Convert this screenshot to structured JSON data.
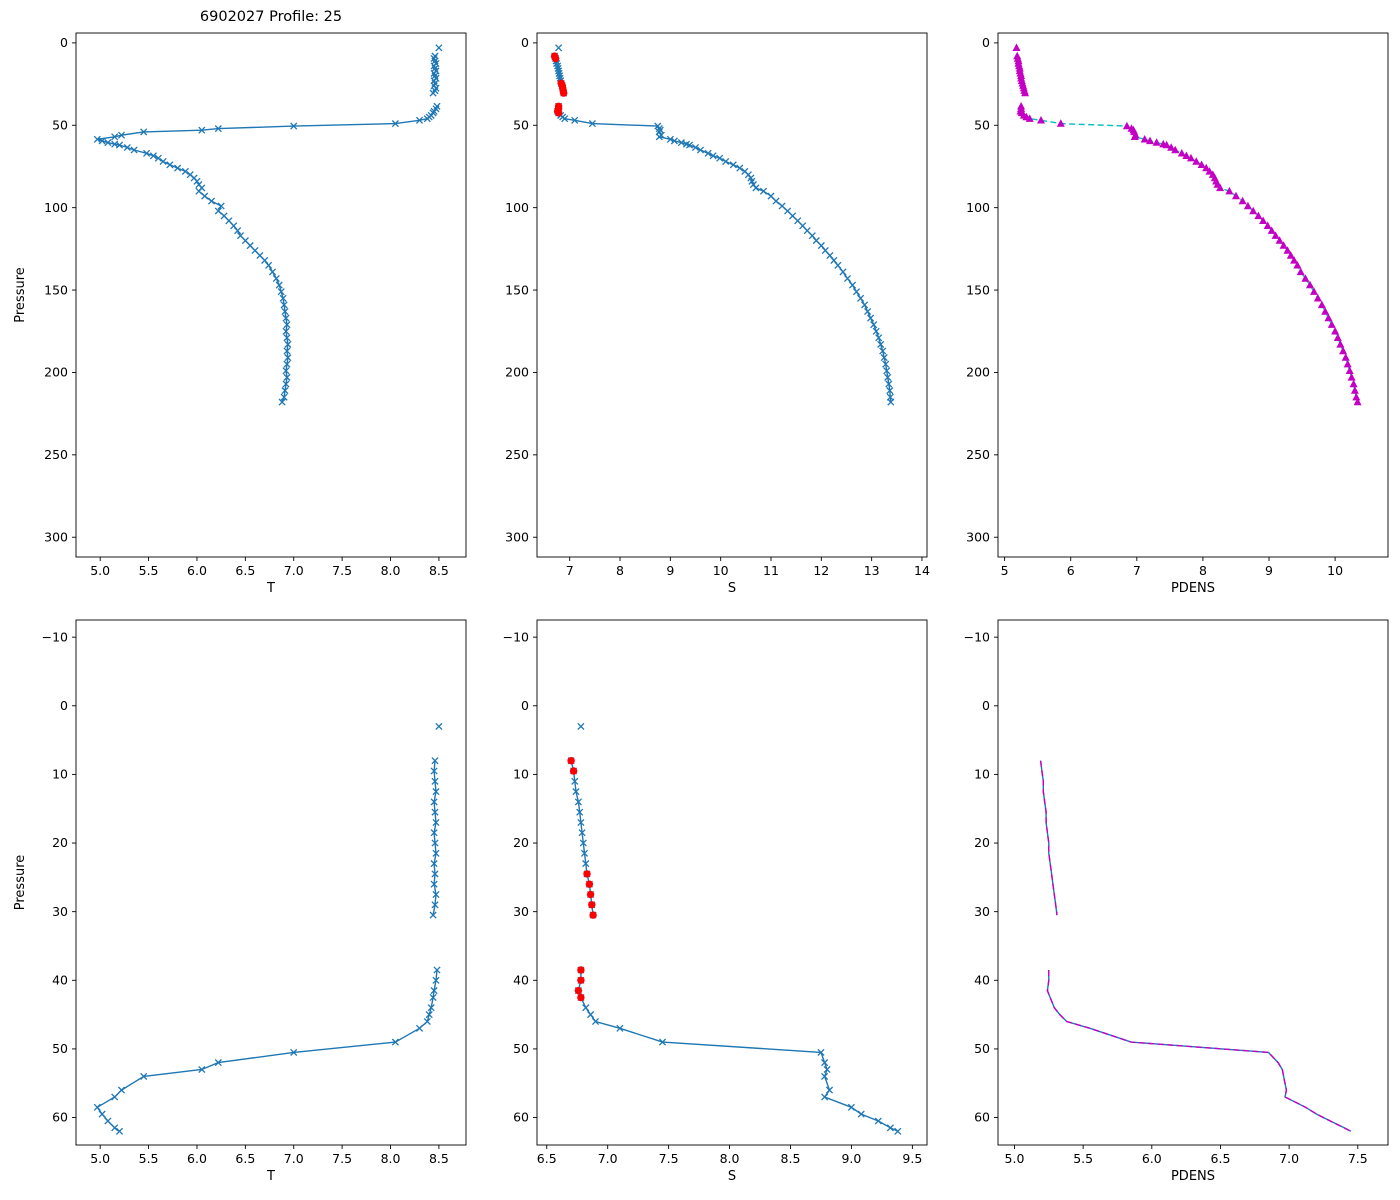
{
  "chart_data": {
    "figure_title": "6902027 Profile: 25",
    "type": "line",
    "profile": {
      "pressure": [
        3,
        8,
        9.5,
        11,
        12.5,
        14,
        15.5,
        17,
        18.5,
        20,
        21.5,
        23,
        24.5,
        26,
        27.5,
        29,
        30.5,
        38.5,
        40,
        41.5,
        42.5,
        44,
        45,
        46,
        47,
        49,
        50.5,
        52,
        53,
        54,
        56,
        57,
        58.5,
        59.5,
        60.5,
        61.5,
        62,
        63.5,
        65,
        67,
        68.5,
        70,
        72,
        74,
        76,
        78,
        80,
        82,
        84,
        86,
        88,
        90,
        93,
        96,
        99,
        102,
        105,
        108,
        111,
        114,
        117,
        120,
        123,
        126,
        129,
        132,
        135,
        139,
        143,
        147,
        151,
        155,
        159,
        163,
        167,
        171,
        175,
        179,
        183,
        187,
        191,
        195,
        199,
        203,
        207,
        211,
        215,
        218
      ],
      "T": [
        8.5,
        8.46,
        8.45,
        8.46,
        8.47,
        8.45,
        8.46,
        8.47,
        8.45,
        8.46,
        8.47,
        8.45,
        8.46,
        8.45,
        8.47,
        8.46,
        8.44,
        8.48,
        8.47,
        8.45,
        8.44,
        8.42,
        8.4,
        8.38,
        8.3,
        8.05,
        7.0,
        6.22,
        6.05,
        5.45,
        5.22,
        5.15,
        4.97,
        5.02,
        5.08,
        5.15,
        5.2,
        5.28,
        5.35,
        5.48,
        5.55,
        5.6,
        5.65,
        5.72,
        5.8,
        5.88,
        5.93,
        5.97,
        6.0,
        6.02,
        6.05,
        6.02,
        6.08,
        6.15,
        6.25,
        6.22,
        6.28,
        6.33,
        6.38,
        6.42,
        6.45,
        6.5,
        6.55,
        6.6,
        6.65,
        6.7,
        6.74,
        6.78,
        6.82,
        6.85,
        6.87,
        6.89,
        6.9,
        6.91,
        6.92,
        6.93,
        6.92,
        6.93,
        6.94,
        6.93,
        6.94,
        6.93,
        6.92,
        6.93,
        6.92,
        6.91,
        6.9,
        6.88
      ],
      "S": [
        6.78,
        6.7,
        6.72,
        6.73,
        6.74,
        6.76,
        6.77,
        6.78,
        6.79,
        6.8,
        6.81,
        6.82,
        6.83,
        6.85,
        6.86,
        6.87,
        6.88,
        6.78,
        6.78,
        6.76,
        6.78,
        6.82,
        6.86,
        6.9,
        7.1,
        7.45,
        8.75,
        8.78,
        8.8,
        8.78,
        8.82,
        8.78,
        9.0,
        9.08,
        9.22,
        9.32,
        9.38,
        9.5,
        9.6,
        9.75,
        9.85,
        9.98,
        10.1,
        10.25,
        10.38,
        10.48,
        10.55,
        10.6,
        10.62,
        10.65,
        10.7,
        10.85,
        11.0,
        11.1,
        11.22,
        11.33,
        11.43,
        11.53,
        11.63,
        11.72,
        11.82,
        11.9,
        12.0,
        12.08,
        12.17,
        12.25,
        12.33,
        12.43,
        12.52,
        12.62,
        12.7,
        12.78,
        12.86,
        12.92,
        12.98,
        13.04,
        13.09,
        13.14,
        13.18,
        13.22,
        13.25,
        13.28,
        13.3,
        13.32,
        13.34,
        13.36,
        13.37,
        13.38
      ],
      "PDENS": [
        5.18,
        5.19,
        5.2,
        5.21,
        5.21,
        5.22,
        5.23,
        5.23,
        5.24,
        5.25,
        5.25,
        5.26,
        5.27,
        5.28,
        5.29,
        5.3,
        5.31,
        5.25,
        5.25,
        5.24,
        5.26,
        5.29,
        5.33,
        5.38,
        5.55,
        5.85,
        6.85,
        6.92,
        6.95,
        6.96,
        6.98,
        6.97,
        7.12,
        7.2,
        7.3,
        7.4,
        7.45,
        7.52,
        7.58,
        7.68,
        7.75,
        7.82,
        7.9,
        7.98,
        8.05,
        8.1,
        8.15,
        8.18,
        8.2,
        8.22,
        8.26,
        8.4,
        8.5,
        8.6,
        8.68,
        8.76,
        8.84,
        8.91,
        8.98,
        9.04,
        9.1,
        9.16,
        9.22,
        9.28,
        9.33,
        9.38,
        9.43,
        9.48,
        9.55,
        9.62,
        9.68,
        9.74,
        9.8,
        9.85,
        9.9,
        9.95,
        10.0,
        10.04,
        10.08,
        10.12,
        10.16,
        10.19,
        10.22,
        10.25,
        10.28,
        10.3,
        10.32,
        10.34
      ],
      "S_flagged": {
        "pressure": [
          8,
          9.5,
          24.5,
          26,
          27.5,
          29,
          30.5,
          38.5,
          40,
          41.5,
          42.5
        ],
        "S": [
          6.7,
          6.72,
          6.83,
          6.85,
          6.86,
          6.87,
          6.88,
          6.78,
          6.78,
          6.76,
          6.78
        ]
      }
    },
    "colors": {
      "line_blue": "#1f77b4",
      "flag_red": "#ff0000",
      "pdens_magenta": "#c400c4",
      "pdens_cyan": "#00bfbf"
    },
    "charts": [
      {
        "name": "temperature-full",
        "xlabel": "T",
        "ylabel": "Pressure",
        "xlim": [
          4.75,
          8.78
        ],
        "ylim": [
          -6,
          312
        ],
        "xticks": [
          5.0,
          5.5,
          6.0,
          6.5,
          7.0,
          7.5,
          8.0,
          8.5
        ],
        "xticklabels": [
          "5.0",
          "5.5",
          "6.0",
          "6.5",
          "7.0",
          "7.5",
          "8.0",
          "8.5"
        ],
        "yticks": [
          0,
          50,
          100,
          150,
          200,
          250,
          300
        ],
        "yticklabels": [
          "0",
          "50",
          "100",
          "150",
          "200",
          "250",
          "300"
        ],
        "p_max": null,
        "series": [
          {
            "name": "T-profile",
            "x_key": "T",
            "line": "solid",
            "line_color": "#1f77b4",
            "marker": "x",
            "marker_color": "#1f77b4"
          }
        ]
      },
      {
        "name": "salinity-full",
        "xlabel": "S",
        "ylabel": "",
        "xlim": [
          6.35,
          14.1
        ],
        "ylim": [
          -6,
          312
        ],
        "xticks": [
          7,
          8,
          9,
          10,
          11,
          12,
          13,
          14
        ],
        "xticklabels": [
          "7",
          "8",
          "9",
          "10",
          "11",
          "12",
          "13",
          "14"
        ],
        "yticks": [
          0,
          50,
          100,
          150,
          200,
          250,
          300
        ],
        "yticklabels": [
          "0",
          "50",
          "100",
          "150",
          "200",
          "250",
          "300"
        ],
        "p_max": null,
        "series": [
          {
            "name": "S-profile",
            "x_key": "S",
            "line": "solid",
            "line_color": "#1f77b4",
            "marker": "x",
            "marker_color": "#1f77b4"
          },
          {
            "name": "S-flagged",
            "x_key": "S_flagged",
            "line": "none",
            "marker": "circle",
            "marker_color": "#ff0000"
          }
        ]
      },
      {
        "name": "pdens-full",
        "xlabel": "PDENS",
        "ylabel": "",
        "xlim": [
          4.9,
          10.8
        ],
        "ylim": [
          -6,
          312
        ],
        "xticks": [
          5,
          6,
          7,
          8,
          9,
          10
        ],
        "xticklabels": [
          "5",
          "6",
          "7",
          "8",
          "9",
          "10"
        ],
        "yticks": [
          0,
          50,
          100,
          150,
          200,
          250,
          300
        ],
        "yticklabels": [
          "0",
          "50",
          "100",
          "150",
          "200",
          "250",
          "300"
        ],
        "p_max": null,
        "series": [
          {
            "name": "PDENS-profile",
            "x_key": "PDENS",
            "line": "dashed",
            "line_color": "#00bfbf",
            "marker": "triangle",
            "marker_color": "#c400c4"
          }
        ]
      },
      {
        "name": "temperature-zoom",
        "xlabel": "T",
        "ylabel": "Pressure",
        "xlim": [
          4.75,
          8.78
        ],
        "ylim": [
          -12.5,
          64
        ],
        "xticks": [
          5.0,
          5.5,
          6.0,
          6.5,
          7.0,
          7.5,
          8.0,
          8.5
        ],
        "xticklabels": [
          "5.0",
          "5.5",
          "6.0",
          "6.5",
          "7.0",
          "7.5",
          "8.0",
          "8.5"
        ],
        "yticks": [
          -10,
          0,
          10,
          20,
          30,
          40,
          50,
          60
        ],
        "yticklabels": [
          "−10",
          "0",
          "10",
          "20",
          "30",
          "40",
          "50",
          "60"
        ],
        "p_max": 63,
        "series": [
          {
            "name": "T-profile",
            "x_key": "T",
            "line": "solid",
            "line_color": "#1f77b4",
            "marker": "x",
            "marker_color": "#1f77b4"
          }
        ]
      },
      {
        "name": "salinity-zoom",
        "xlabel": "S",
        "ylabel": "",
        "xlim": [
          6.42,
          9.62
        ],
        "ylim": [
          -12.5,
          64
        ],
        "xticks": [
          6.5,
          7.0,
          7.5,
          8.0,
          8.5,
          9.0,
          9.5
        ],
        "xticklabels": [
          "6.5",
          "7.0",
          "7.5",
          "8.0",
          "8.5",
          "9.0",
          "9.5"
        ],
        "yticks": [
          -10,
          0,
          10,
          20,
          30,
          40,
          50,
          60
        ],
        "yticklabels": [
          "−10",
          "0",
          "10",
          "20",
          "30",
          "40",
          "50",
          "60"
        ],
        "p_max": 63,
        "series": [
          {
            "name": "S-profile",
            "x_key": "S",
            "line": "solid",
            "line_color": "#1f77b4",
            "marker": "x",
            "marker_color": "#1f77b4"
          },
          {
            "name": "S-flagged",
            "x_key": "S_flagged",
            "line": "none",
            "marker": "circle",
            "marker_color": "#ff0000"
          }
        ]
      },
      {
        "name": "pdens-zoom",
        "xlabel": "PDENS",
        "ylabel": "",
        "xlim": [
          4.88,
          7.72
        ],
        "ylim": [
          -12.5,
          64
        ],
        "xticks": [
          5.0,
          5.5,
          6.0,
          6.5,
          7.0,
          7.5
        ],
        "xticklabels": [
          "5.0",
          "5.5",
          "6.0",
          "6.5",
          "7.0",
          "7.5"
        ],
        "yticks": [
          -10,
          0,
          10,
          20,
          30,
          40,
          50,
          60
        ],
        "yticklabels": [
          "−10",
          "0",
          "10",
          "20",
          "30",
          "40",
          "50",
          "60"
        ],
        "p_max": 63,
        "series": [
          {
            "name": "PDENS-line",
            "x_key": "PDENS",
            "line": "solid",
            "line_color": "#1f77b4",
            "marker": "none"
          },
          {
            "name": "PDENS-overlay",
            "x_key": "PDENS",
            "line": "dashed",
            "line_color": "#c400c4",
            "marker": "none"
          }
        ]
      }
    ]
  }
}
